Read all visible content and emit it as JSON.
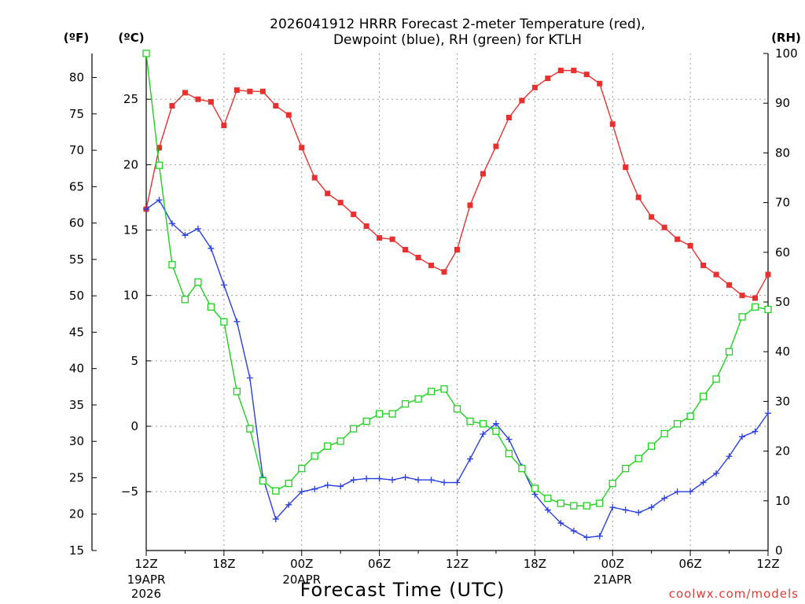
{
  "title_lines": [
    "2026041912 HRRR Forecast 2-meter Temperature (red),",
    "Dewpoint (blue), RH (green) for KTLH"
  ],
  "units": {
    "f": "(ºF)",
    "c": "(ºC)",
    "rh": "(RH)"
  },
  "xaxis_label": "Forecast Time (UTC)",
  "credit": "coolwx.com/models",
  "colors": {
    "temp": "#e8302e",
    "dew": "#2a3fe0",
    "rh": "#1ed21e",
    "grid": "#9a9a9a"
  },
  "chart_data": {
    "type": "line",
    "title": "2026041912 HRRR Forecast 2-meter Temperature (red), Dewpoint (blue), RH (green) for KTLH",
    "xlabel": "Forecast Time (UTC)",
    "x_unit": "forecast hour from 2026-04-19 12Z",
    "x": [
      0,
      1,
      2,
      3,
      4,
      5,
      6,
      7,
      8,
      9,
      10,
      11,
      12,
      13,
      14,
      15,
      16,
      17,
      18,
      19,
      20,
      21,
      22,
      23,
      24,
      25,
      26,
      27,
      28,
      29,
      30,
      31,
      32,
      33,
      34,
      35,
      36,
      37,
      38,
      39,
      40,
      41,
      42,
      43,
      44,
      45,
      46,
      47,
      48
    ],
    "xlim": [
      0,
      48
    ],
    "xticks": [
      {
        "x": 0,
        "label": "12Z",
        "sub": [
          "19APR",
          "2026"
        ]
      },
      {
        "x": 6,
        "label": "18Z",
        "sub": []
      },
      {
        "x": 12,
        "label": "00Z",
        "sub": [
          "20APR"
        ]
      },
      {
        "x": 18,
        "label": "06Z",
        "sub": []
      },
      {
        "x": 24,
        "label": "12Z",
        "sub": []
      },
      {
        "x": 30,
        "label": "18Z",
        "sub": []
      },
      {
        "x": 36,
        "label": "00Z",
        "sub": [
          "21APR"
        ]
      },
      {
        "x": 42,
        "label": "06Z",
        "sub": []
      },
      {
        "x": 48,
        "label": "12Z",
        "sub": []
      }
    ],
    "y_left_c": {
      "lim": [
        -9.5,
        28.5
      ],
      "ticks": [
        -5,
        0,
        5,
        10,
        15,
        20,
        25
      ]
    },
    "y_left_f": {
      "lim": [
        15,
        83.3
      ],
      "ticks": [
        15,
        20,
        25,
        30,
        35,
        40,
        45,
        50,
        55,
        60,
        65,
        70,
        75,
        80
      ]
    },
    "y_right_rh": {
      "lim": [
        0,
        100
      ],
      "ticks": [
        0,
        10,
        20,
        30,
        40,
        50,
        60,
        70,
        80,
        90,
        100
      ]
    },
    "grid": true,
    "series": [
      {
        "name": "Temperature",
        "unit": "C",
        "marker": "filled-square",
        "values": [
          16.6,
          21.3,
          24.5,
          25.5,
          25.0,
          24.8,
          23.0,
          25.7,
          25.6,
          25.6,
          24.5,
          23.8,
          21.3,
          19.0,
          17.8,
          17.1,
          16.2,
          15.3,
          14.4,
          14.3,
          13.5,
          12.9,
          12.3,
          11.8,
          13.5,
          16.9,
          19.3,
          21.4,
          23.6,
          24.9,
          25.9,
          26.6,
          27.2,
          27.2,
          26.9,
          26.2,
          23.1,
          19.8,
          17.5,
          16.0,
          15.2,
          14.3,
          13.8,
          12.3,
          11.6,
          10.8,
          10.0,
          9.8,
          11.6
        ]
      },
      {
        "name": "Dewpoint",
        "unit": "C",
        "marker": "plus",
        "values": [
          16.6,
          17.3,
          15.5,
          14.6,
          15.1,
          13.6,
          10.8,
          8.0,
          3.7,
          -3.9,
          -7.1,
          -6.0,
          -5.0,
          -4.8,
          -4.5,
          -4.6,
          -4.1,
          -4.0,
          -4.0,
          -4.1,
          -3.9,
          -4.1,
          -4.1,
          -4.3,
          -4.3,
          -2.5,
          -0.6,
          0.2,
          -1.0,
          -3.1,
          -5.2,
          -6.4,
          -7.4,
          -8.0,
          -8.5,
          -8.4,
          -6.2,
          -6.4,
          -6.6,
          -6.2,
          -5.5,
          -5.0,
          -5.0,
          -4.3,
          -3.6,
          -2.3,
          -0.8,
          -0.4,
          1.0
        ]
      },
      {
        "name": "RH",
        "unit": "%",
        "marker": "open-square",
        "axis": "right",
        "values": [
          100,
          77.5,
          57.5,
          50.5,
          54,
          49,
          46,
          32,
          24.5,
          14,
          12,
          13.5,
          16.5,
          19,
          21,
          22,
          24.5,
          26,
          27.5,
          27.5,
          29.5,
          30.5,
          32,
          32.5,
          28.5,
          26,
          25.5,
          24,
          19.5,
          16.5,
          12.5,
          10.5,
          9.5,
          9,
          9,
          9.5,
          13.5,
          16.5,
          18.5,
          21,
          23.5,
          25.5,
          27,
          31,
          34.5,
          40,
          47,
          49,
          48.5
        ]
      }
    ]
  }
}
